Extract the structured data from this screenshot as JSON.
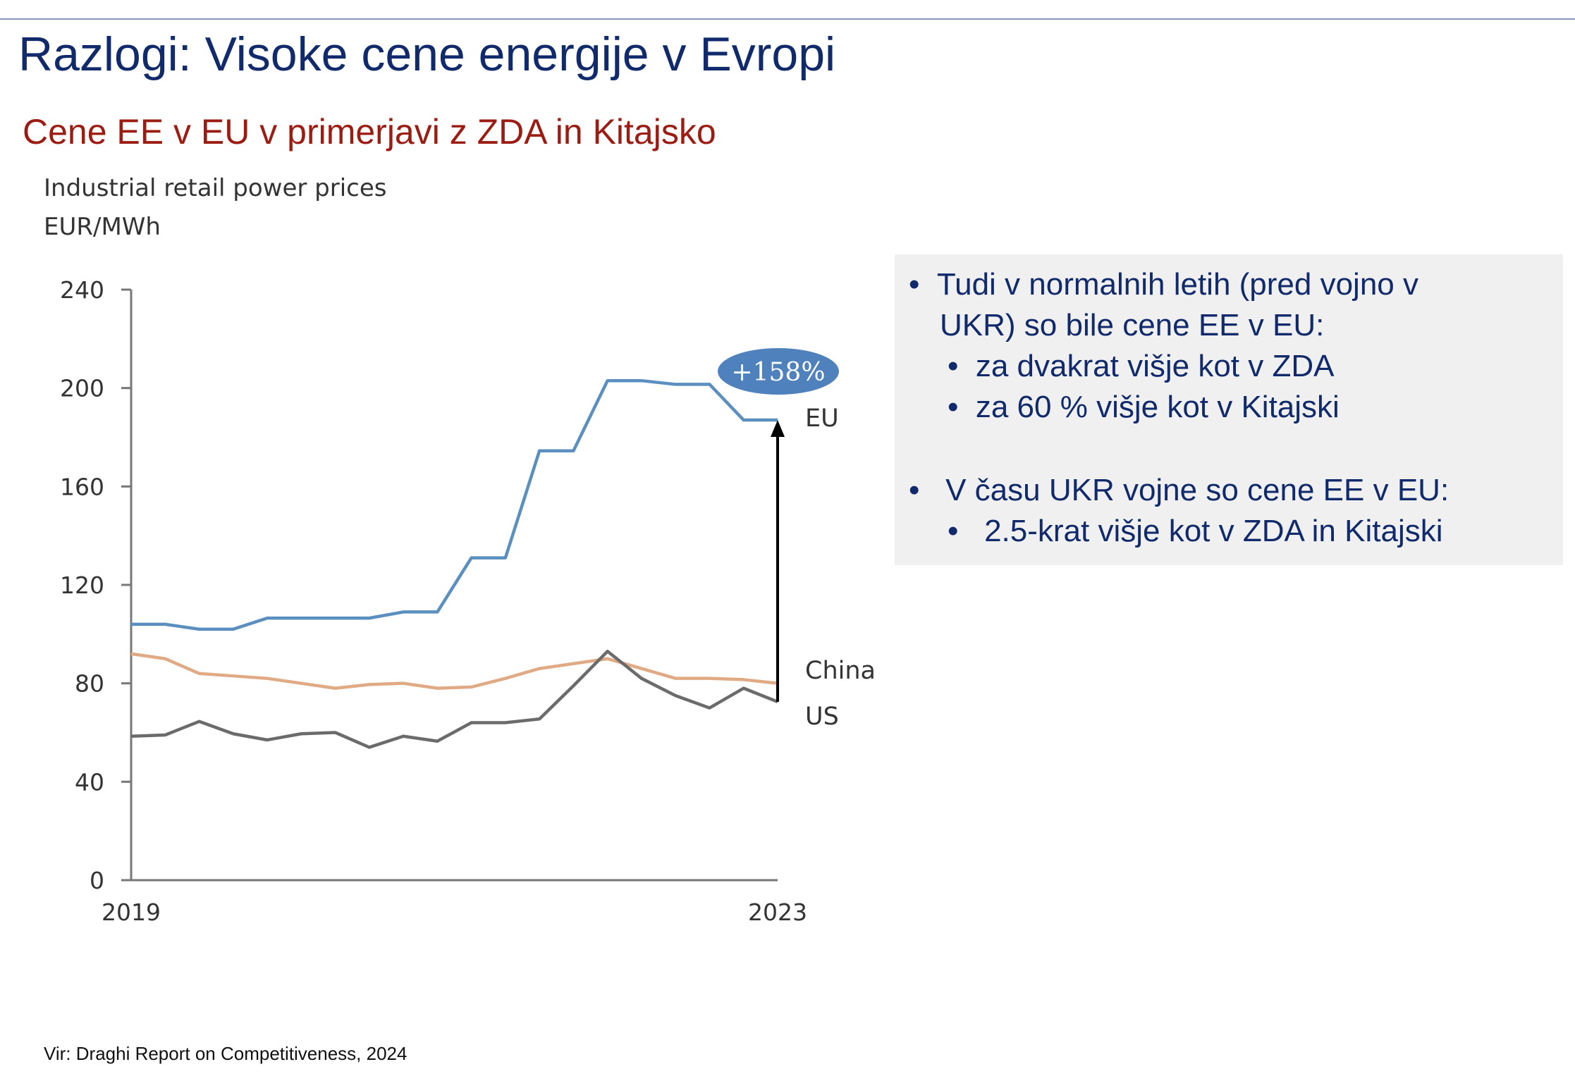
{
  "title": "Razlogi: Visoke cene energije v Evropi",
  "subtitle": "Cene EE v EU v primerjavi z ZDA in Kitajsko",
  "info": {
    "bullet1": "Tudi v normalnih letih (pred vojno v",
    "bullet1b": "UKR) so bile cene EE v EU:",
    "sub1": "za dvakrat višje kot v ZDA",
    "sub2": "za 60 % višje kot v Kitajski",
    "bullet2": "V času UKR vojne so cene EE v EU:",
    "sub3": "2.5-krat višje kot v ZDA in Kitajski"
  },
  "footer": "Vir: Draghi Report on Competitiveness, 2024",
  "chart_data": {
    "type": "line",
    "title": "Industrial retail power prices",
    "ylabel": "EUR/MWh",
    "xlabel": "",
    "x_tick_labels": [
      "2019",
      "2023"
    ],
    "y_ticks": [
      0,
      40,
      80,
      120,
      160,
      200,
      240
    ],
    "ylim": [
      0,
      240
    ],
    "points_per_series": 20,
    "annotation": "+158%",
    "series": [
      {
        "name": "EU",
        "color": "#5b8fbf",
        "values": [
          104,
          104,
          102,
          102,
          106.5,
          106.5,
          106.5,
          106.5,
          109,
          109,
          131,
          131,
          174.5,
          174.5,
          203,
          203,
          201.5,
          201.5,
          187,
          187
        ]
      },
      {
        "name": "China",
        "color": "#e0aa85",
        "values": [
          92,
          90,
          84,
          83,
          82,
          80,
          78,
          79.5,
          80,
          78,
          78.5,
          82,
          86,
          88,
          90,
          86,
          82,
          82,
          81.5,
          80
        ]
      },
      {
        "name": "US",
        "color": "#6b6b6b",
        "values": [
          58.5,
          59,
          64.5,
          59.5,
          57,
          59.5,
          60,
          54,
          58.5,
          56.5,
          64,
          64,
          65.5,
          79,
          93,
          82,
          75,
          70,
          78,
          72.5
        ]
      }
    ]
  }
}
